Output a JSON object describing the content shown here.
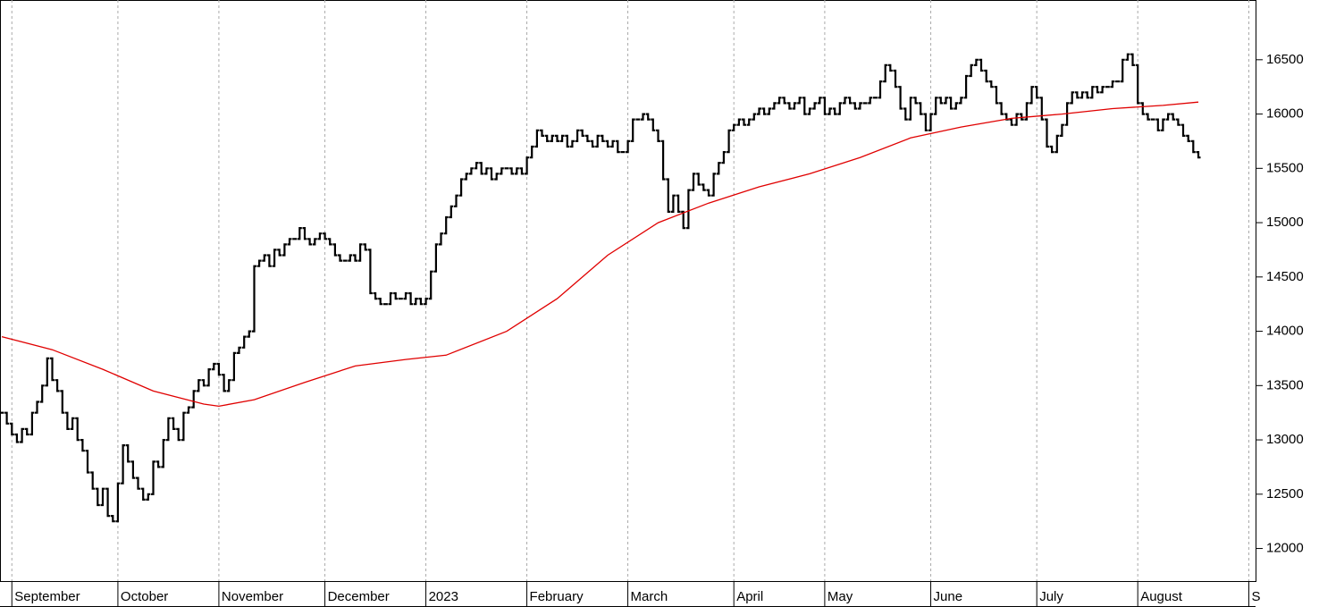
{
  "chart_data": {
    "type": "price",
    "series": [
      {
        "color": "#000000",
        "values": [
          13250,
          13150,
          13050,
          12980,
          13100,
          13050,
          13250,
          13350,
          13500,
          13750,
          13550,
          13450,
          13250,
          13100,
          13200,
          13000,
          12900,
          12700,
          12550,
          12400,
          12550,
          12300,
          12250,
          12600,
          12950,
          12800,
          12650,
          12550,
          12450,
          12500,
          12800,
          12750,
          13000,
          13200,
          13100,
          13000,
          13250,
          13300,
          13450,
          13550,
          13500,
          13650,
          13700,
          13600,
          13450,
          13550,
          13800,
          13850,
          13950,
          14000,
          14600,
          14650,
          14700,
          14600,
          14750,
          14700,
          14800,
          14850,
          14850,
          14950,
          14850,
          14800,
          14850,
          14900,
          14850,
          14800,
          14700,
          14650,
          14650,
          14700,
          14650,
          14800,
          14750,
          14350,
          14300,
          14250,
          14250,
          14350,
          14300,
          14300,
          14350,
          14250,
          14300,
          14250,
          14300,
          14550,
          14800,
          14900,
          15050,
          15150,
          15250,
          15400,
          15450,
          15500,
          15550,
          15450,
          15500,
          15400,
          15450,
          15500,
          15500,
          15450,
          15500,
          15450,
          15600,
          15700,
          15850,
          15800,
          15750,
          15800,
          15750,
          15800,
          15700,
          15750,
          15850,
          15800,
          15750,
          15700,
          15800,
          15750,
          15700,
          15750,
          15650,
          15650,
          15750,
          15950,
          15950,
          16000,
          15950,
          15850,
          15750,
          15400,
          15100,
          15250,
          15100,
          14950,
          15300,
          15450,
          15350,
          15300,
          15250,
          15450,
          15550,
          15650,
          15850,
          15900,
          15950,
          15900,
          15950,
          16000,
          16050,
          16000,
          16050,
          16100,
          16150,
          16100,
          16050,
          16100,
          16150,
          16000,
          16050,
          16100,
          16150,
          16000,
          16050,
          16000,
          16100,
          16150,
          16100,
          16050,
          16100,
          16100,
          16150,
          16150,
          16300,
          16450,
          16400,
          16250,
          16050,
          15950,
          16150,
          16100,
          16000,
          15850,
          16000,
          16150,
          16100,
          16150,
          16050,
          16100,
          16150,
          16350,
          16450,
          16500,
          16400,
          16300,
          16250,
          16100,
          16000,
          15950,
          15900,
          16000,
          15950,
          16100,
          16250,
          16150,
          15950,
          15700,
          15650,
          15800,
          15900,
          16100,
          16200,
          16150,
          16200,
          16150,
          16250,
          16200,
          16250,
          16250,
          16300,
          16300,
          16500,
          16550,
          16450,
          16100,
          16000,
          15950,
          15950,
          15850,
          15950,
          16000,
          15950,
          15900,
          15800,
          15750,
          15650,
          15600
        ]
      },
      {
        "color": "#e00000",
        "x": [
          0,
          10,
          20,
          30,
          40,
          43,
          50,
          60,
          70,
          80,
          88,
          100,
          110,
          120,
          130,
          140,
          150,
          160,
          170,
          180,
          190,
          200,
          210,
          220,
          230,
          237
        ],
        "values": [
          13950,
          13830,
          13650,
          13450,
          13330,
          13310,
          13370,
          13530,
          13680,
          13740,
          13780,
          14000,
          14300,
          14700,
          15000,
          15180,
          15330,
          15450,
          15600,
          15780,
          15880,
          15960,
          16000,
          16050,
          16080,
          16110
        ]
      }
    ],
    "xlim": [
      -0.35,
      248.33
    ],
    "xticks": [
      {
        "value": 2,
        "label": "September"
      },
      {
        "value": 23,
        "label": "October"
      },
      {
        "value": 43,
        "label": "November"
      },
      {
        "value": 64,
        "label": "December"
      },
      {
        "value": 84,
        "label": "2023"
      },
      {
        "value": 104,
        "label": "February"
      },
      {
        "value": 124,
        "label": "March"
      },
      {
        "value": 145,
        "label": "April"
      },
      {
        "value": 163,
        "label": "May"
      },
      {
        "value": 184,
        "label": "June"
      },
      {
        "value": 205,
        "label": "July"
      },
      {
        "value": 225,
        "label": "August"
      },
      {
        "value": 247,
        "label": "S"
      }
    ],
    "ylim": [
      11700,
      17050
    ],
    "yticks": [
      12000,
      12500,
      13000,
      13500,
      14000,
      14500,
      15000,
      15500,
      16000,
      16500
    ],
    "grid": true
  }
}
